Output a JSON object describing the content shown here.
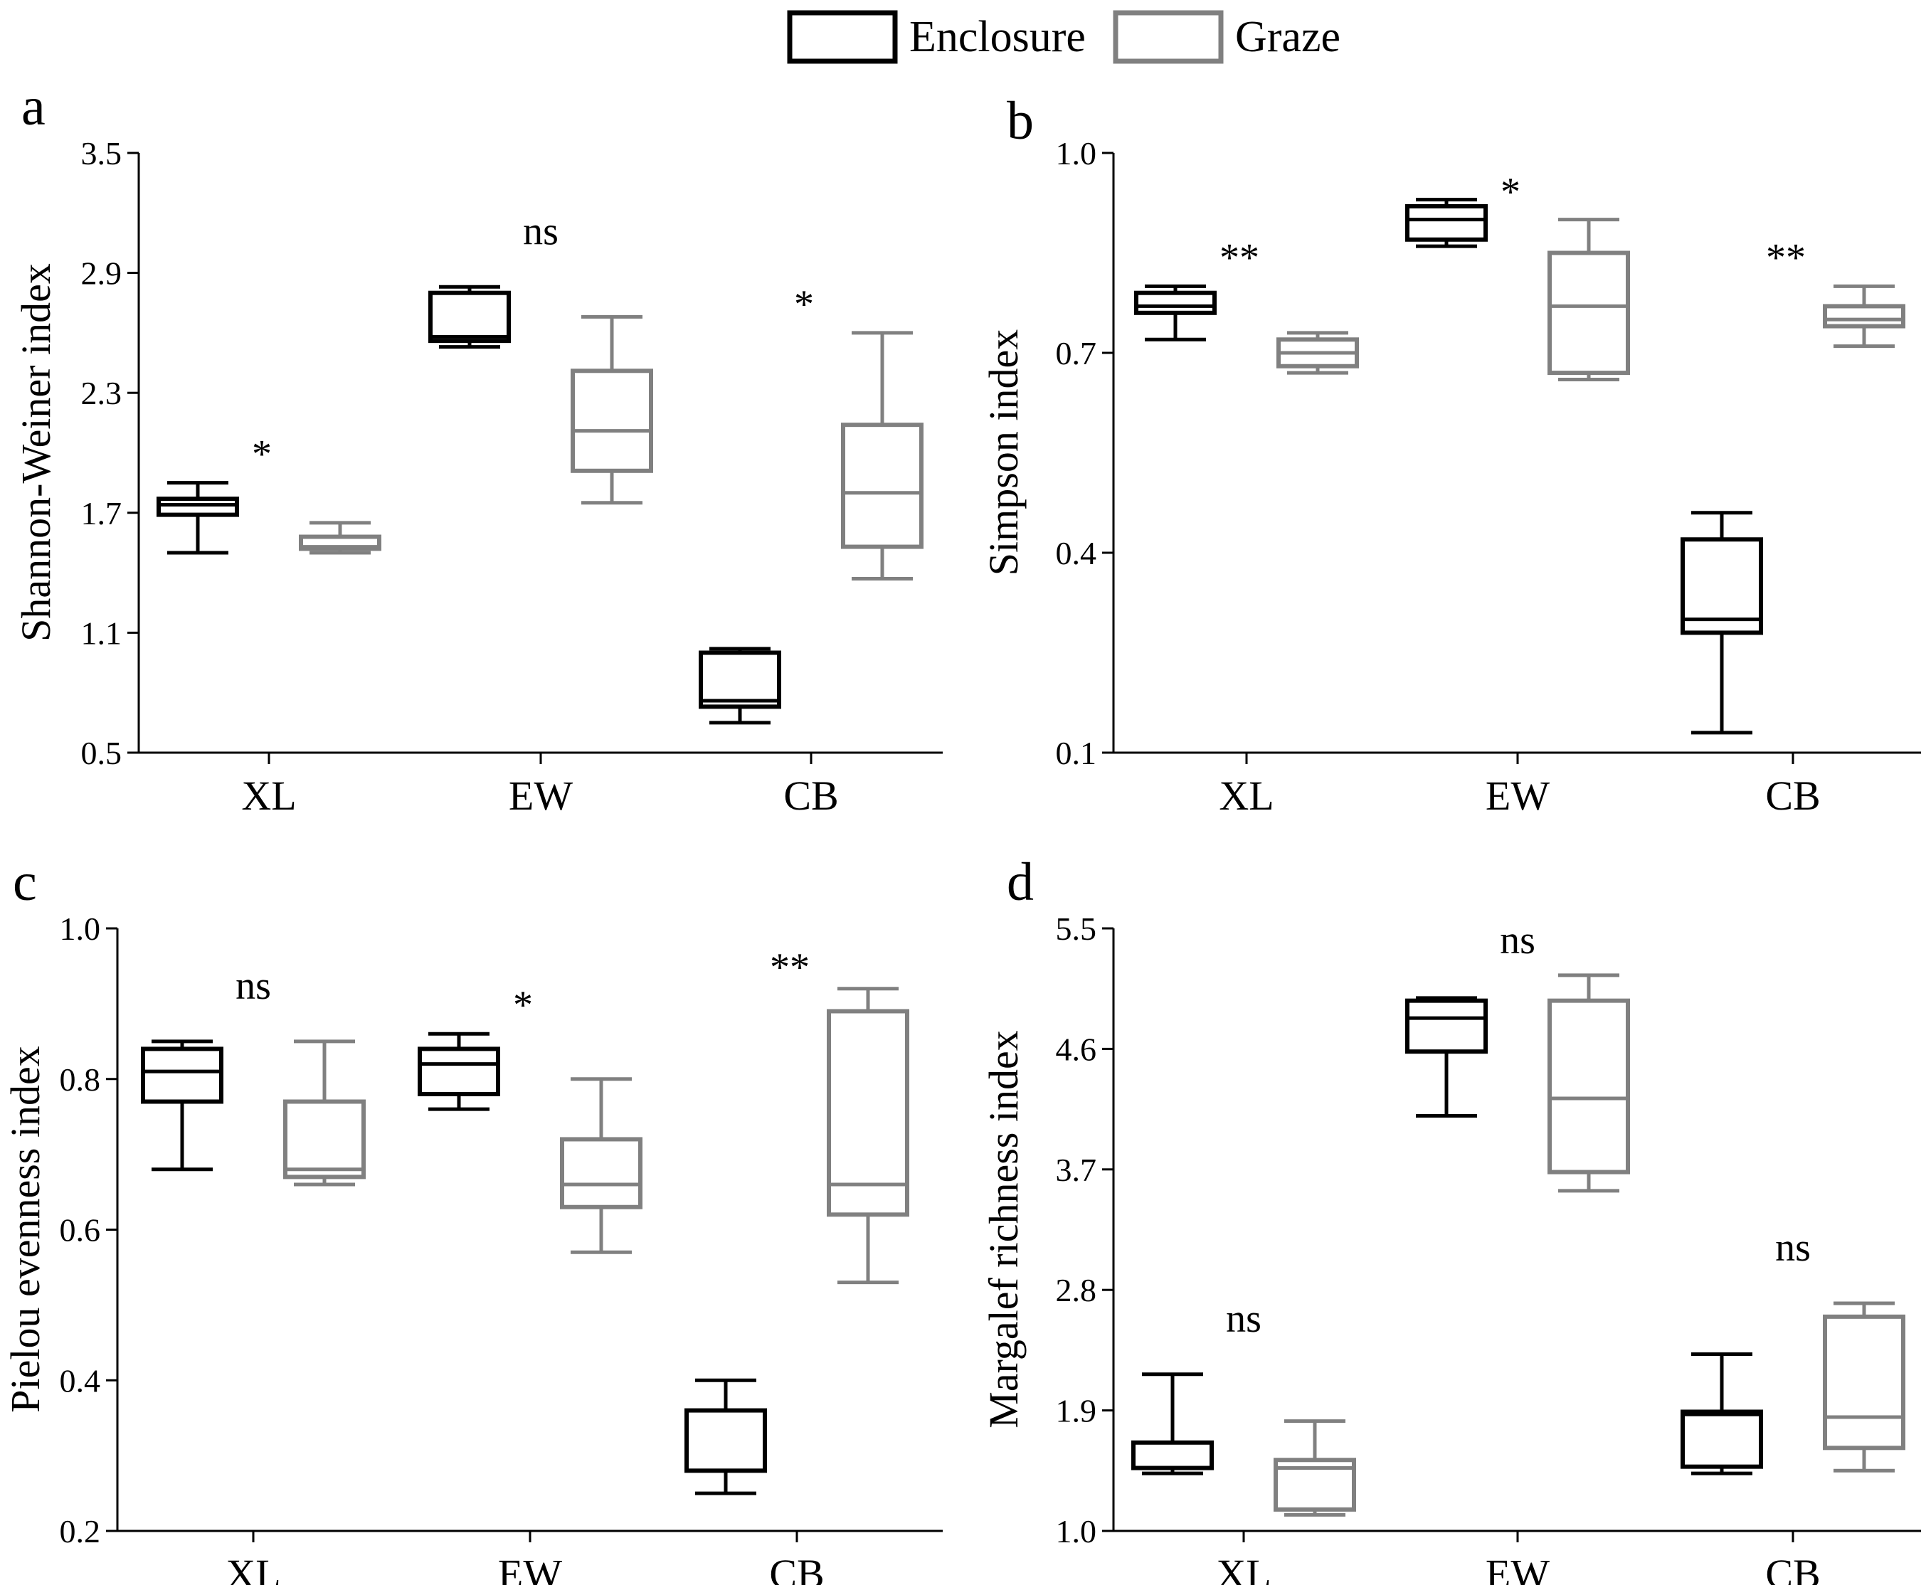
{
  "colors": {
    "enclosure": "#000000",
    "graze": "#808080",
    "axis": "#000000",
    "background": "#ffffff"
  },
  "legend": {
    "enclosure_label": "Enclosure",
    "graze_label": "Graze"
  },
  "chart_data": [
    {
      "type": "box",
      "panel": "a",
      "ylabel": "Shannon-Weiner index",
      "ylim": [
        0.5,
        3.5
      ],
      "yticks": [
        "0.5",
        "1.1",
        "1.7",
        "2.3",
        "2.9",
        "3.5"
      ],
      "categories": [
        "XL",
        "EW",
        "CB"
      ],
      "significance": [
        "*",
        "ns",
        "*"
      ],
      "series": [
        {
          "name": "Enclosure",
          "boxes": [
            {
              "min": 1.5,
              "q1": 1.69,
              "median": 1.74,
              "q3": 1.77,
              "max": 1.85
            },
            {
              "min": 2.53,
              "q1": 2.56,
              "median": 2.58,
              "q3": 2.8,
              "max": 2.83
            },
            {
              "min": 0.65,
              "q1": 0.73,
              "median": 0.76,
              "q3": 1.0,
              "max": 1.02
            }
          ]
        },
        {
          "name": "Graze",
          "boxes": [
            {
              "min": 1.5,
              "q1": 1.52,
              "median": 1.53,
              "q3": 1.58,
              "max": 1.65
            },
            {
              "min": 1.75,
              "q1": 1.91,
              "median": 2.11,
              "q3": 2.41,
              "max": 2.68
            },
            {
              "min": 1.37,
              "q1": 1.53,
              "median": 1.8,
              "q3": 2.14,
              "max": 2.6
            }
          ]
        }
      ]
    },
    {
      "type": "box",
      "panel": "b",
      "ylabel": "Simpson index",
      "ylim": [
        0.1,
        1.0
      ],
      "yticks": [
        "0.1",
        "0.4",
        "0.7",
        "1.0"
      ],
      "categories": [
        "XL",
        "EW",
        "CB"
      ],
      "significance": [
        "**",
        "*",
        "**"
      ],
      "series": [
        {
          "name": "Enclosure",
          "boxes": [
            {
              "min": 0.72,
              "q1": 0.76,
              "median": 0.77,
              "q3": 0.79,
              "max": 0.8
            },
            {
              "min": 0.86,
              "q1": 0.87,
              "median": 0.9,
              "q3": 0.92,
              "max": 0.93
            },
            {
              "min": 0.13,
              "q1": 0.28,
              "median": 0.3,
              "q3": 0.42,
              "max": 0.46
            }
          ]
        },
        {
          "name": "Graze",
          "boxes": [
            {
              "min": 0.67,
              "q1": 0.68,
              "median": 0.7,
              "q3": 0.72,
              "max": 0.73
            },
            {
              "min": 0.66,
              "q1": 0.67,
              "median": 0.77,
              "q3": 0.85,
              "max": 0.9
            },
            {
              "min": 0.71,
              "q1": 0.74,
              "median": 0.75,
              "q3": 0.77,
              "max": 0.8
            }
          ]
        }
      ]
    },
    {
      "type": "box",
      "panel": "c",
      "ylabel": "Pielou evenness index",
      "ylim": [
        0.2,
        1.0
      ],
      "yticks": [
        "0.2",
        "0.4",
        "0.6",
        "0.8",
        "1.0"
      ],
      "categories": [
        "XL",
        "EW",
        "CB"
      ],
      "significance": [
        "ns",
        "*",
        "**"
      ],
      "series": [
        {
          "name": "Enclosure",
          "boxes": [
            {
              "min": 0.68,
              "q1": 0.77,
              "median": 0.81,
              "q3": 0.84,
              "max": 0.85
            },
            {
              "min": 0.76,
              "q1": 0.78,
              "median": 0.82,
              "q3": 0.84,
              "max": 0.86
            },
            {
              "min": 0.25,
              "q1": 0.28,
              "median": 0.28,
              "q3": 0.36,
              "max": 0.4
            }
          ]
        },
        {
          "name": "Graze",
          "boxes": [
            {
              "min": 0.66,
              "q1": 0.67,
              "median": 0.68,
              "q3": 0.77,
              "max": 0.85
            },
            {
              "min": 0.57,
              "q1": 0.63,
              "median": 0.66,
              "q3": 0.72,
              "max": 0.8
            },
            {
              "min": 0.53,
              "q1": 0.62,
              "median": 0.66,
              "q3": 0.89,
              "max": 0.92
            }
          ]
        }
      ]
    },
    {
      "type": "box",
      "panel": "d",
      "ylabel": "Margalef richness index",
      "ylim": [
        1.0,
        5.5
      ],
      "yticks": [
        "1.0",
        "1.9",
        "2.8",
        "3.7",
        "4.6",
        "5.5"
      ],
      "categories": [
        "XL",
        "EW",
        "CB"
      ],
      "significance": [
        "ns",
        "ns",
        "ns"
      ],
      "series": [
        {
          "name": "Enclosure",
          "boxes": [
            {
              "min": 1.43,
              "q1": 1.47,
              "median": 1.66,
              "q3": 1.66,
              "max": 2.17
            },
            {
              "min": 4.1,
              "q1": 4.58,
              "median": 4.83,
              "q3": 4.96,
              "max": 4.98
            },
            {
              "min": 1.43,
              "q1": 1.48,
              "median": 1.87,
              "q3": 1.89,
              "max": 2.32
            }
          ]
        },
        {
          "name": "Graze",
          "boxes": [
            {
              "min": 1.12,
              "q1": 1.16,
              "median": 1.47,
              "q3": 1.53,
              "max": 1.82
            },
            {
              "min": 3.54,
              "q1": 3.68,
              "median": 4.23,
              "q3": 4.96,
              "max": 5.15
            },
            {
              "min": 1.45,
              "q1": 1.62,
              "median": 1.85,
              "q3": 2.6,
              "max": 2.7
            }
          ]
        }
      ]
    }
  ]
}
